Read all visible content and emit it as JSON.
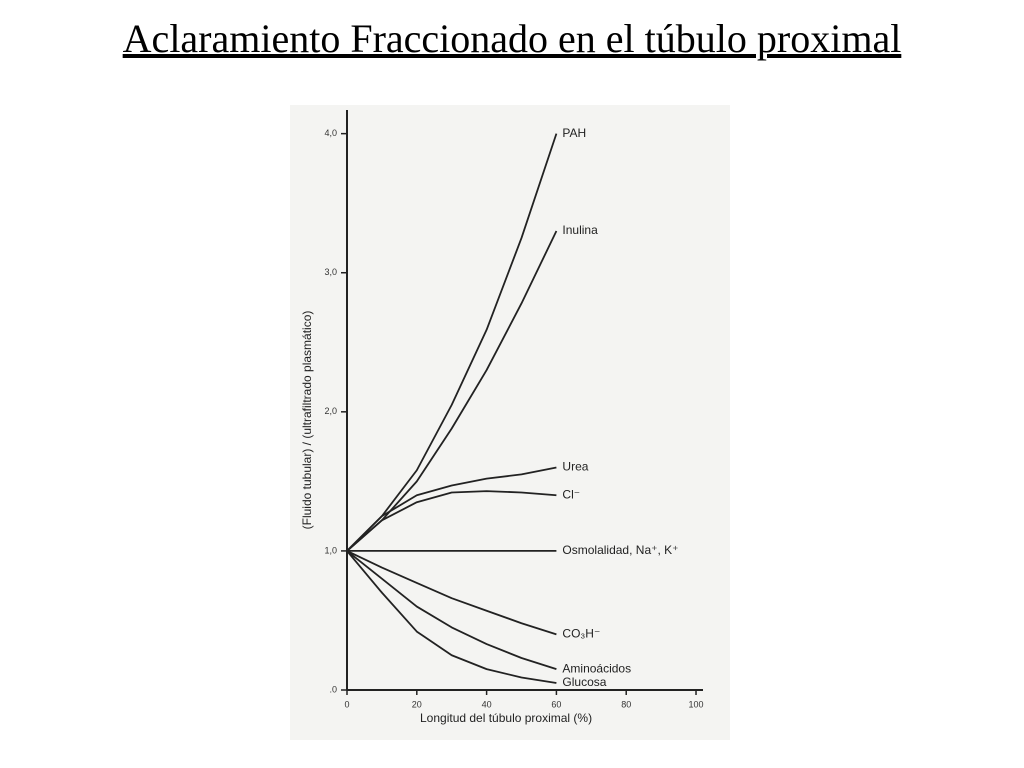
{
  "chart_data": {
    "type": "line",
    "title": "Aclaramiento Fraccionado en el túbulo proximal",
    "x_label": "Longitud del túbulo proximal (%)",
    "y_label": "(Fluido tubular) / (ultrafiltrado plasmático)",
    "x": [
      0,
      10,
      20,
      30,
      40,
      50,
      60
    ],
    "series": [
      {
        "name": "PAH",
        "color": "#222222",
        "values": [
          1.0,
          1.25,
          1.58,
          2.05,
          2.59,
          3.25,
          4.0
        ]
      },
      {
        "name": "Inulina",
        "color": "#222222",
        "values": [
          1.0,
          1.22,
          1.5,
          1.88,
          2.3,
          2.78,
          3.3
        ]
      },
      {
        "name": "Urea",
        "color": "#222222",
        "values": [
          1.0,
          1.25,
          1.4,
          1.47,
          1.52,
          1.55,
          1.6
        ]
      },
      {
        "name": "Cl⁻",
        "color": "#222222",
        "values": [
          1.0,
          1.22,
          1.35,
          1.42,
          1.43,
          1.42,
          1.4
        ]
      },
      {
        "name": "Osmolalidad, Na⁺, K⁺",
        "color": "#222222",
        "values": [
          1.0,
          1.0,
          1.0,
          1.0,
          1.0,
          1.0,
          1.0
        ]
      },
      {
        "name": "CO₃H⁻",
        "color": "#222222",
        "values": [
          1.0,
          0.88,
          0.77,
          0.66,
          0.57,
          0.48,
          0.4
        ]
      },
      {
        "name": "Aminoácidos",
        "color": "#222222",
        "values": [
          1.0,
          0.8,
          0.6,
          0.45,
          0.33,
          0.23,
          0.15
        ]
      },
      {
        "name": "Glucosa",
        "color": "#222222",
        "values": [
          1.0,
          0.7,
          0.42,
          0.25,
          0.15,
          0.09,
          0.05
        ]
      }
    ],
    "xlim": [
      0,
      102
    ],
    "ylim": [
      0,
      4.17
    ],
    "xticks": [
      0,
      20,
      40,
      60,
      80,
      100
    ],
    "yticks": [
      {
        "value": 0,
        "label": ".0"
      },
      {
        "value": 1,
        "label": "1,0"
      },
      {
        "value": 2,
        "label": "2,0"
      },
      {
        "value": 3,
        "label": "3,0"
      },
      {
        "value": 4,
        "label": "4,0"
      }
    ]
  }
}
